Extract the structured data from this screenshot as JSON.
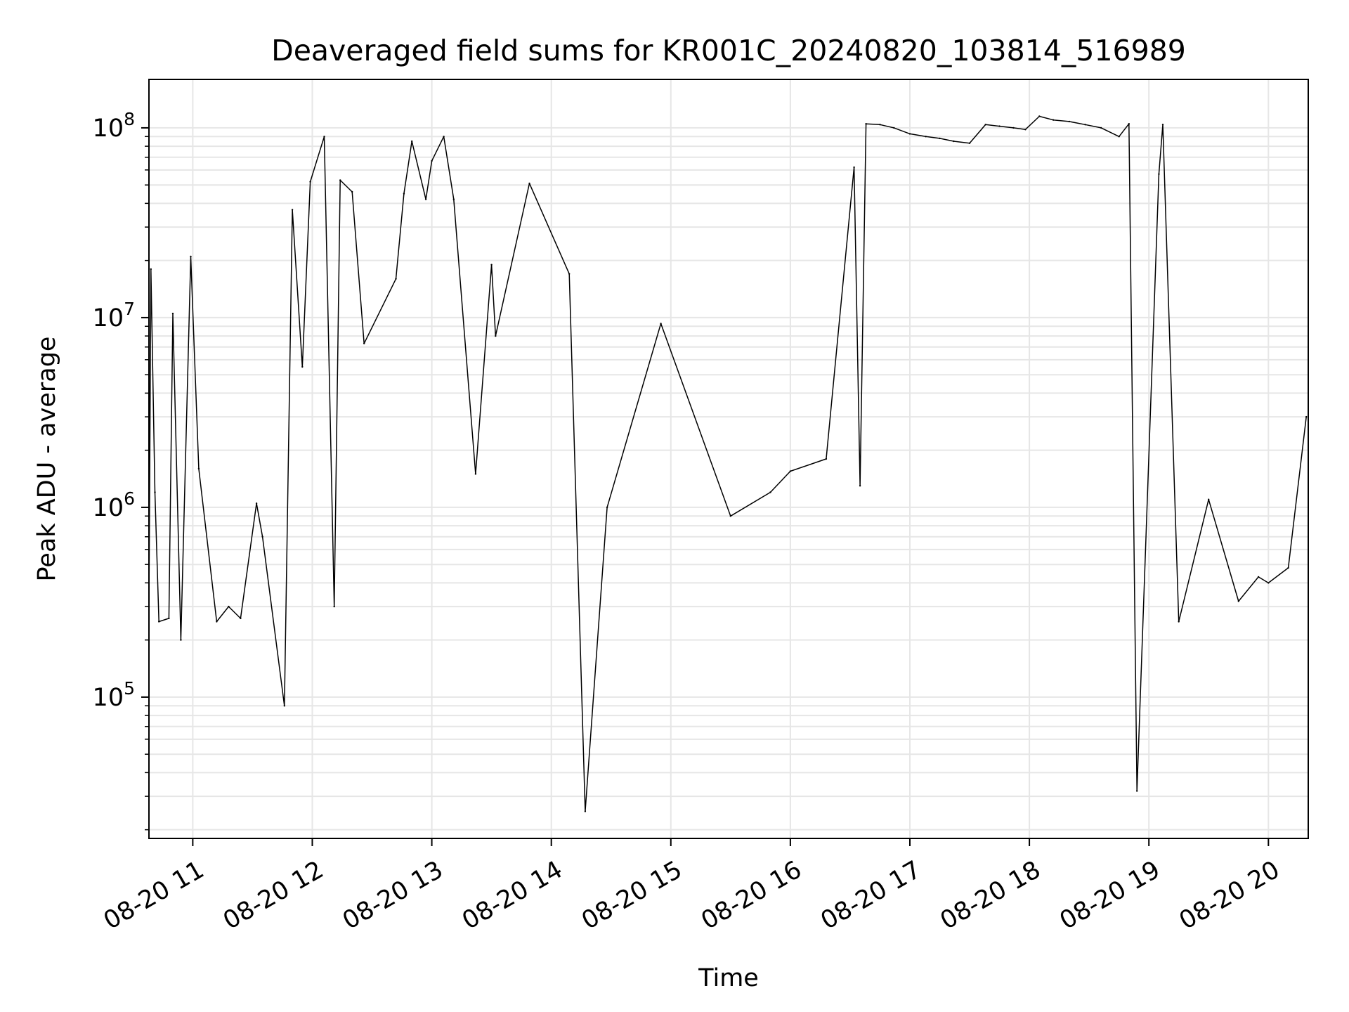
{
  "chart_data": {
    "type": "line",
    "title": "Deaveraged field sums for KR001C_20240820_103814_516989",
    "xlabel": "Time",
    "ylabel": "Peak ADU - average",
    "y_scale": "log",
    "ylim": [
      18000,
      180000000
    ],
    "xlim": [
      "2024-08-20 10:38",
      "2024-08-20 20:20"
    ],
    "grid": true,
    "line_color": "#000000",
    "grid_color": "#e6e6e6",
    "x_ticks": [
      {
        "value": "2024-08-20 11:00",
        "label": "08-20 11"
      },
      {
        "value": "2024-08-20 12:00",
        "label": "08-20 12"
      },
      {
        "value": "2024-08-20 13:00",
        "label": "08-20 13"
      },
      {
        "value": "2024-08-20 14:00",
        "label": "08-20 14"
      },
      {
        "value": "2024-08-20 15:00",
        "label": "08-20 15"
      },
      {
        "value": "2024-08-20 16:00",
        "label": "08-20 16"
      },
      {
        "value": "2024-08-20 17:00",
        "label": "08-20 17"
      },
      {
        "value": "2024-08-20 18:00",
        "label": "08-20 18"
      },
      {
        "value": "2024-08-20 19:00",
        "label": "08-20 19"
      },
      {
        "value": "2024-08-20 20:00",
        "label": "08-20 20"
      }
    ],
    "y_ticks": [
      {
        "value": 100000,
        "base": "10",
        "exp": "5"
      },
      {
        "value": 1000000,
        "base": "10",
        "exp": "6"
      },
      {
        "value": 10000000,
        "base": "10",
        "exp": "7"
      },
      {
        "value": 100000000,
        "base": "10",
        "exp": "8"
      }
    ],
    "series": [
      {
        "x": [
          "2024-08-20 10:38",
          "2024-08-20 10:39",
          "2024-08-20 10:41",
          "2024-08-20 10:43",
          "2024-08-20 10:48",
          "2024-08-20 10:50",
          "2024-08-20 10:54",
          "2024-08-20 10:59",
          "2024-08-20 11:03",
          "2024-08-20 11:12",
          "2024-08-20 11:18",
          "2024-08-20 11:24",
          "2024-08-20 11:32",
          "2024-08-20 11:35",
          "2024-08-20 11:46",
          "2024-08-20 11:50",
          "2024-08-20 11:55",
          "2024-08-20 11:59",
          "2024-08-20 12:06",
          "2024-08-20 12:11",
          "2024-08-20 12:14",
          "2024-08-20 12:20",
          "2024-08-20 12:26",
          "2024-08-20 12:42",
          "2024-08-20 12:46",
          "2024-08-20 12:50",
          "2024-08-20 12:57",
          "2024-08-20 13:00",
          "2024-08-20 13:06",
          "2024-08-20 13:11",
          "2024-08-20 13:22",
          "2024-08-20 13:30",
          "2024-08-20 13:32",
          "2024-08-20 13:49",
          "2024-08-20 14:09",
          "2024-08-20 14:17",
          "2024-08-20 14:28",
          "2024-08-20 14:55",
          "2024-08-20 15:30",
          "2024-08-20 15:50",
          "2024-08-20 16:00",
          "2024-08-20 16:18",
          "2024-08-20 16:32",
          "2024-08-20 16:35",
          "2024-08-20 16:38",
          "2024-08-20 16:45",
          "2024-08-20 16:52",
          "2024-08-20 17:00",
          "2024-08-20 17:08",
          "2024-08-20 17:15",
          "2024-08-20 17:22",
          "2024-08-20 17:30",
          "2024-08-20 17:38",
          "2024-08-20 17:45",
          "2024-08-20 17:52",
          "2024-08-20 17:58",
          "2024-08-20 18:05",
          "2024-08-20 18:12",
          "2024-08-20 18:20",
          "2024-08-20 18:28",
          "2024-08-20 18:36",
          "2024-08-20 18:45",
          "2024-08-20 18:50",
          "2024-08-20 18:54",
          "2024-08-20 19:05",
          "2024-08-20 19:07",
          "2024-08-20 19:15",
          "2024-08-20 19:30",
          "2024-08-20 19:45",
          "2024-08-20 19:55",
          "2024-08-20 20:00",
          "2024-08-20 20:10",
          "2024-08-20 20:19"
        ],
        "y": [
          300000,
          18000000,
          1200000,
          250000,
          260000,
          10500000,
          200000,
          21000000,
          1600000,
          250000,
          300000,
          260000,
          1050000,
          700000,
          90000,
          37000000,
          5500000,
          52000000,
          90000000,
          300000,
          53000000,
          46000000,
          7300000,
          16000000,
          45000000,
          85000000,
          42000000,
          67000000,
          90000000,
          42000000,
          1500000,
          19000000,
          8000000,
          51000000,
          17000000,
          25000,
          1000000,
          9300000,
          900000,
          1200000,
          1550000,
          1800000,
          62000000,
          1300000,
          105000000,
          104000000,
          100000000,
          93000000,
          90000000,
          88000000,
          85000000,
          83000000,
          104000000,
          102000000,
          100000000,
          98000000,
          115000000,
          110000000,
          108000000,
          104000000,
          100000000,
          90000000,
          105000000,
          32000,
          57000000,
          104000000,
          250000,
          1100000,
          320000,
          430000,
          400000,
          480000,
          3000000
        ]
      }
    ]
  }
}
